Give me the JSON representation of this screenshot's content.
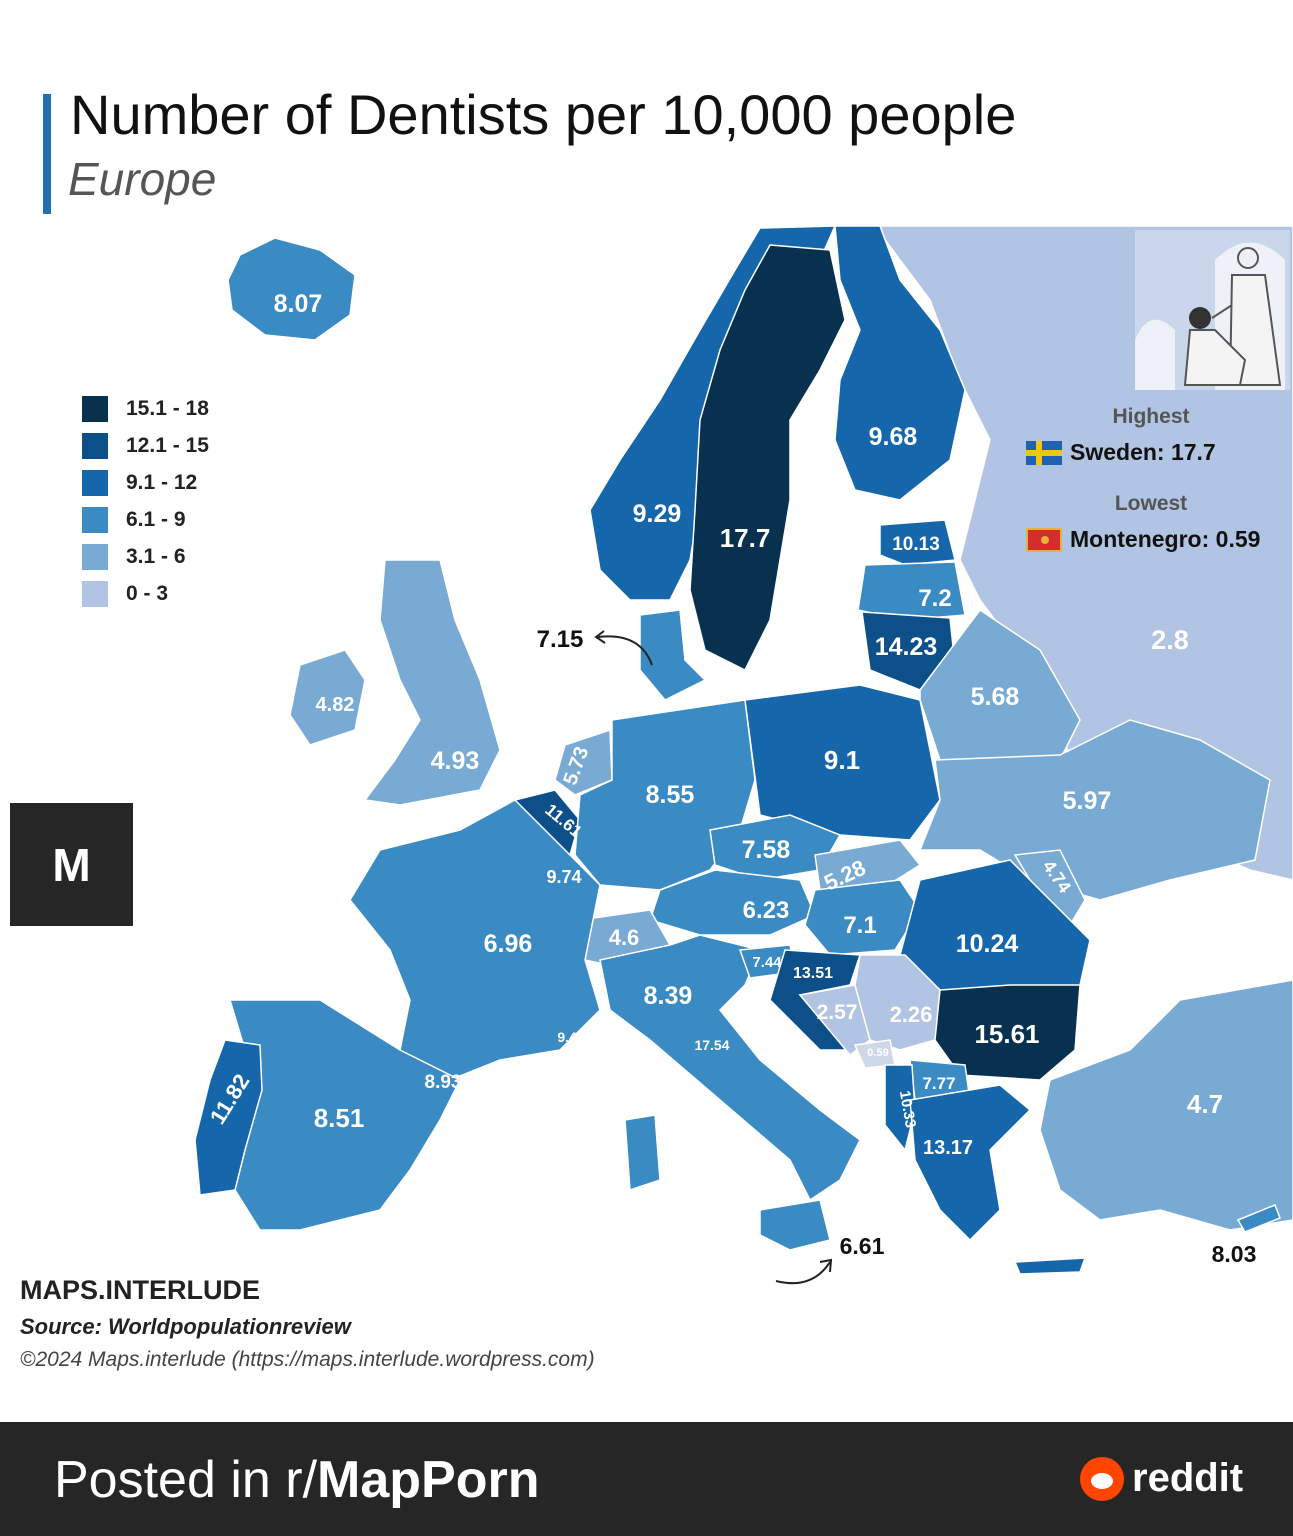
{
  "title": "Number of Dentists per 10,000 people",
  "subtitle": "Europe",
  "legend": [
    {
      "range": "15.1 - 18",
      "color": "#08304f"
    },
    {
      "range": "12.1 - 15",
      "color": "#0d4f88"
    },
    {
      "range": "9.1 - 12",
      "color": "#1566ab"
    },
    {
      "range": "6.1 - 9",
      "color": "#3a8ac3"
    },
    {
      "range": "3.1 - 6",
      "color": "#79aad3"
    },
    {
      "range": "0 - 3",
      "color": "#b2c4e3"
    }
  ],
  "highlight": {
    "highest_label": "Highest",
    "highest_value": "Sweden: 17.7",
    "lowest_label": "Lowest",
    "lowest_value": "Montenegro: 0.59"
  },
  "map_values": [
    {
      "id": "iceland",
      "value": "8.07"
    },
    {
      "id": "norway",
      "value": "9.29"
    },
    {
      "id": "sweden",
      "value": "17.7"
    },
    {
      "id": "finland",
      "value": "9.68"
    },
    {
      "id": "estonia",
      "value": "10.13"
    },
    {
      "id": "latvia",
      "value": "7.2"
    },
    {
      "id": "lithuania",
      "value": "14.23"
    },
    {
      "id": "russia",
      "value": "2.8"
    },
    {
      "id": "denmark",
      "value": "7.15"
    },
    {
      "id": "ireland",
      "value": "4.82"
    },
    {
      "id": "uk",
      "value": "4.93"
    },
    {
      "id": "netherlands",
      "value": "5.73"
    },
    {
      "id": "belgium",
      "value": "11.61"
    },
    {
      "id": "luxembourg",
      "value": "9.74"
    },
    {
      "id": "germany",
      "value": "8.55"
    },
    {
      "id": "poland",
      "value": "9.1"
    },
    {
      "id": "belarus",
      "value": "5.68"
    },
    {
      "id": "ukraine",
      "value": "5.97"
    },
    {
      "id": "czechia",
      "value": "7.58"
    },
    {
      "id": "slovakia",
      "value": "5.28"
    },
    {
      "id": "moldova",
      "value": "4.74"
    },
    {
      "id": "austria",
      "value": "6.23"
    },
    {
      "id": "hungary",
      "value": "7.1"
    },
    {
      "id": "romania",
      "value": "10.24"
    },
    {
      "id": "france",
      "value": "6.96"
    },
    {
      "id": "switzerland",
      "value": "4.6"
    },
    {
      "id": "slovenia",
      "value": "7.44"
    },
    {
      "id": "croatia",
      "value": "13.51"
    },
    {
      "id": "bosnia",
      "value": "2.57"
    },
    {
      "id": "serbia",
      "value": "2.26"
    },
    {
      "id": "montenegro",
      "value": "0.59"
    },
    {
      "id": "bulgaria",
      "value": "15.61"
    },
    {
      "id": "north-macedonia",
      "value": "7.77"
    },
    {
      "id": "albania",
      "value": "10.33"
    },
    {
      "id": "greece",
      "value": "13.17"
    },
    {
      "id": "italy",
      "value": "8.39"
    },
    {
      "id": "san-marino",
      "value": "17.54"
    },
    {
      "id": "monaco",
      "value": "9.49"
    },
    {
      "id": "andorra",
      "value": "8.93"
    },
    {
      "id": "spain",
      "value": "8.51"
    },
    {
      "id": "portugal",
      "value": "11.82"
    },
    {
      "id": "turkey",
      "value": "4.7"
    },
    {
      "id": "malta",
      "value": "6.61"
    },
    {
      "id": "cyprus",
      "value": "8.03"
    }
  ],
  "credit": {
    "brand": "MAPS.INTERLUDE",
    "source": "Source: Worldpopulationreview",
    "copyright": "©2024 Maps.interlude (https://maps.interlude.wordpress.com)"
  },
  "logo_mark": "M",
  "footer": {
    "posted_prefix": "Posted in r/",
    "subreddit": "MapPorn",
    "brand": "reddit"
  }
}
